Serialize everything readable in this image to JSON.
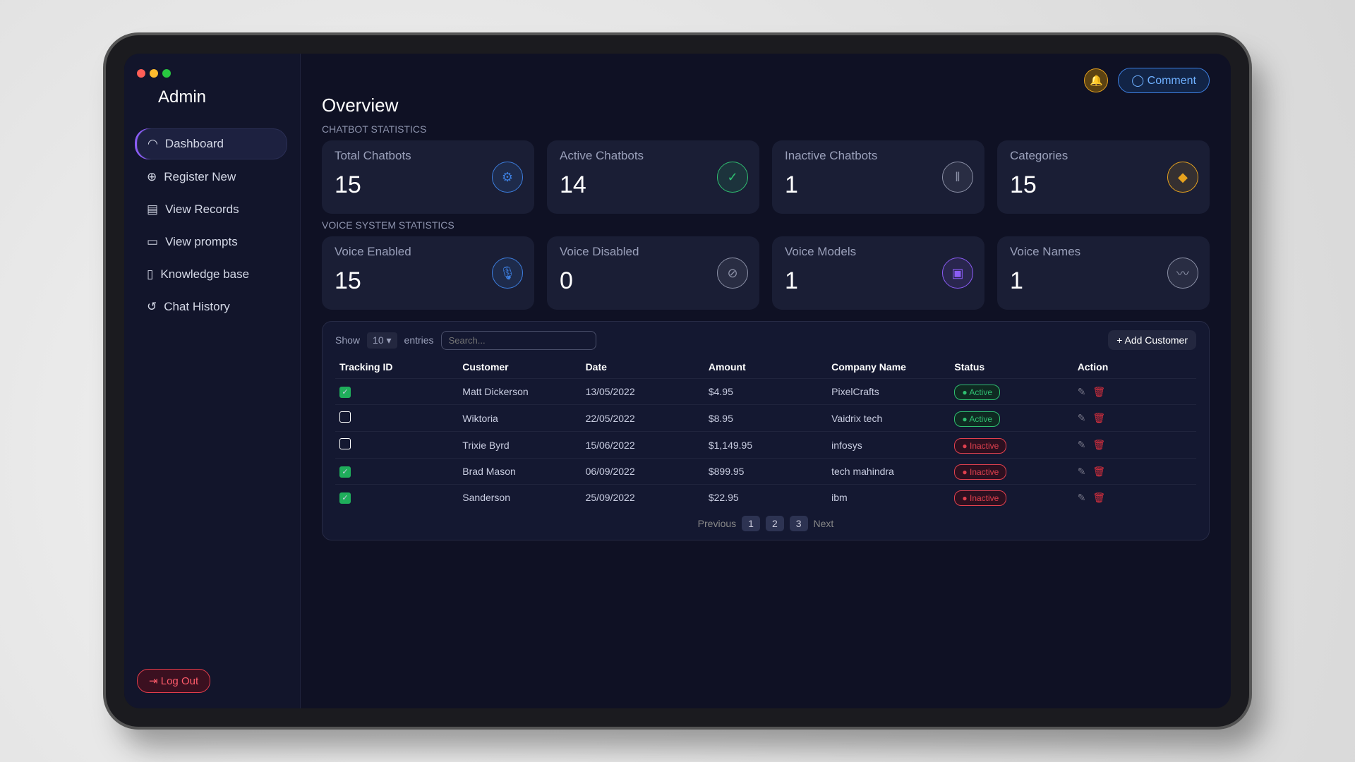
{
  "sidebar": {
    "title": "Admin",
    "items": [
      {
        "label": "Dashboard",
        "icon": "gauge-icon",
        "active": true
      },
      {
        "label": "Register New",
        "icon": "plus-circle-icon"
      },
      {
        "label": "View Records",
        "icon": "table-icon"
      },
      {
        "label": "View prompts",
        "icon": "message-icon"
      },
      {
        "label": "Knowledge base",
        "icon": "book-icon"
      },
      {
        "label": "Chat History",
        "icon": "history-icon"
      }
    ],
    "logout": "Log Out"
  },
  "topbar": {
    "comment": "Comment",
    "bell_icon": "bell-icon"
  },
  "overview": "Overview",
  "chatbot_section": "CHATBOT STATISTICS",
  "chatbot_cards": [
    {
      "title": "Total Chatbots",
      "value": "15",
      "icon": "robot-icon",
      "color": "#3d7fe0"
    },
    {
      "title": "Active Chatbots",
      "value": "14",
      "icon": "check-icon",
      "color": "#2fbf71"
    },
    {
      "title": "Inactive Chatbots",
      "value": "1",
      "icon": "pause-icon",
      "color": "#8b90a6"
    },
    {
      "title": "Categories",
      "value": "15",
      "icon": "tag-icon",
      "color": "#e6a21e"
    }
  ],
  "voice_section": "VOICE SYSTEM STATISTICS",
  "voice_cards": [
    {
      "title": "Voice Enabled",
      "value": "15",
      "icon": "microphone-icon",
      "color": "#3d7fe0"
    },
    {
      "title": "Voice Disabled",
      "value": "0",
      "icon": "microphone-off-icon",
      "color": "#8b90a6"
    },
    {
      "title": "Voice Models",
      "value": "1",
      "icon": "chip-icon",
      "color": "#8b5cf6"
    },
    {
      "title": "Voice Names",
      "value": "1",
      "icon": "waveform-icon",
      "color": "#8b90a6"
    }
  ],
  "table": {
    "show": "Show",
    "entries_value": "10",
    "entries": "entries",
    "search_placeholder": "Search...",
    "add": "+ Add Customer",
    "headers": [
      "Tracking ID",
      "Customer",
      "Date",
      "Amount",
      "Company Name",
      "Status",
      "Action"
    ],
    "rows": [
      {
        "checked": true,
        "customer": "Matt Dickerson",
        "date": "13/05/2022",
        "amount": "$4.95",
        "company": "PixelCrafts",
        "status": "Active"
      },
      {
        "checked": false,
        "customer": "Wiktoria",
        "date": "22/05/2022",
        "amount": "$8.95",
        "company": "Vaidrix tech",
        "status": "Active"
      },
      {
        "checked": false,
        "customer": "Trixie Byrd",
        "date": "15/06/2022",
        "amount": "$1,149.95",
        "company": "infosys",
        "status": "Inactive"
      },
      {
        "checked": true,
        "customer": "Brad Mason",
        "date": "06/09/2022",
        "amount": "$899.95",
        "company": "tech mahindra",
        "status": "Inactive"
      },
      {
        "checked": true,
        "customer": "Sanderson",
        "date": "25/09/2022",
        "amount": "$22.95",
        "company": "ibm",
        "status": "Inactive"
      }
    ],
    "pager": {
      "previous": "Previous",
      "pages": [
        "1",
        "2",
        "3"
      ],
      "next": "Next"
    }
  }
}
